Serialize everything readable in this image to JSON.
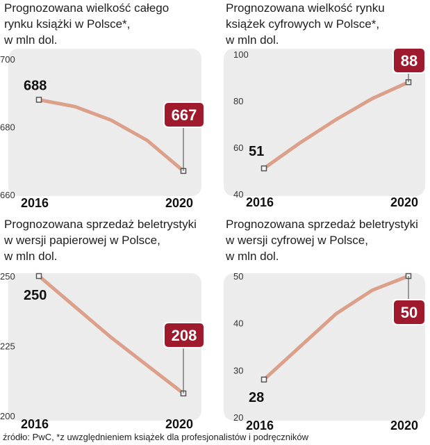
{
  "chart_data": [
    {
      "type": "line",
      "title": [
        "Prognozowana wielkość całego",
        "rynku książki w Polsce*,",
        "w mln dol."
      ],
      "x": [
        2016,
        2017,
        2018,
        2019,
        2020
      ],
      "xlabels": [
        "2016",
        "2020"
      ],
      "values": [
        688,
        686,
        682,
        676,
        667
      ],
      "ylim": [
        660,
        700
      ],
      "yticks": [
        "660",
        "680",
        "700"
      ],
      "start_label": "688",
      "end_label": "667",
      "highlight": "end"
    },
    {
      "type": "line",
      "title": [
        "Prognozowana wielkość rynku",
        "książek cyfrowych w Polsce*,",
        "w mln dol."
      ],
      "x": [
        2016,
        2017,
        2018,
        2019,
        2020
      ],
      "xlabels": [
        "2016",
        "2020"
      ],
      "values": [
        51,
        62,
        72,
        81,
        88
      ],
      "ylim": [
        40,
        100
      ],
      "yticks": [
        "40",
        "60",
        "80",
        "100"
      ],
      "start_label": "51",
      "end_label": "88",
      "highlight": "end"
    },
    {
      "type": "line",
      "title": [
        "Prognozowana sprzedaż beletrystyki",
        "w wersji papierowej w Polsce,",
        "w mln dol."
      ],
      "x": [
        2016,
        2017,
        2018,
        2019,
        2020
      ],
      "xlabels": [
        "2016",
        "2020"
      ],
      "values": [
        250,
        239,
        228,
        218,
        208
      ],
      "ylim": [
        200,
        250
      ],
      "yticks": [
        "200",
        "225",
        "250"
      ],
      "start_label": "250",
      "end_label": "208",
      "highlight": "end"
    },
    {
      "type": "line",
      "title": [
        "Prognozowana sprzedaż beletrystyki",
        "w wersji cyfrowej w Polsce,",
        "w mln dol."
      ],
      "x": [
        2016,
        2017,
        2018,
        2019,
        2020
      ],
      "xlabels": [
        "2016",
        "2020"
      ],
      "values": [
        28,
        35,
        42,
        47,
        50
      ],
      "ylim": [
        20,
        50
      ],
      "yticks": [
        "20",
        "30",
        "40",
        "50"
      ],
      "start_label": "28",
      "end_label": "50",
      "highlight": "end"
    }
  ],
  "source": "źródło: PwC, *z uwzględnieniem książek dla profesjonalistów i podręczników",
  "colors": {
    "line": "#dca08a",
    "panel": "#ececec",
    "accent": "#9e1a2c",
    "marker": "#555555"
  }
}
